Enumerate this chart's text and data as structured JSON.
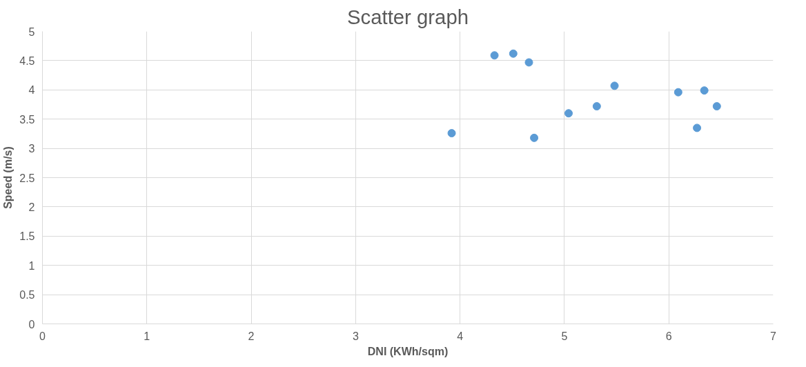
{
  "chart_data": {
    "type": "scatter",
    "title": "Scatter graph",
    "xlabel": "DNI (KWh/sqm)",
    "ylabel": "Speed (m/s)",
    "x": [
      3.92,
      4.33,
      4.51,
      4.66,
      4.71,
      5.04,
      5.31,
      5.48,
      6.09,
      6.34,
      6.27,
      6.46
    ],
    "series": [
      {
        "color": "#5b9bd5",
        "values": [
          3.26,
          4.59,
          4.62,
          4.47,
          3.18,
          3.6,
          3.72,
          4.07,
          3.96,
          3.99,
          3.35,
          3.72
        ]
      }
    ],
    "xlim": [
      0,
      7
    ],
    "xticks": [
      0,
      1,
      2,
      3,
      4,
      5,
      6,
      7
    ],
    "ylim": [
      0,
      5
    ],
    "yticks": [
      0,
      0.5,
      1,
      1.5,
      2,
      2.5,
      3,
      3.5,
      4,
      4.5,
      5
    ],
    "grid": true,
    "marker": "circle"
  }
}
